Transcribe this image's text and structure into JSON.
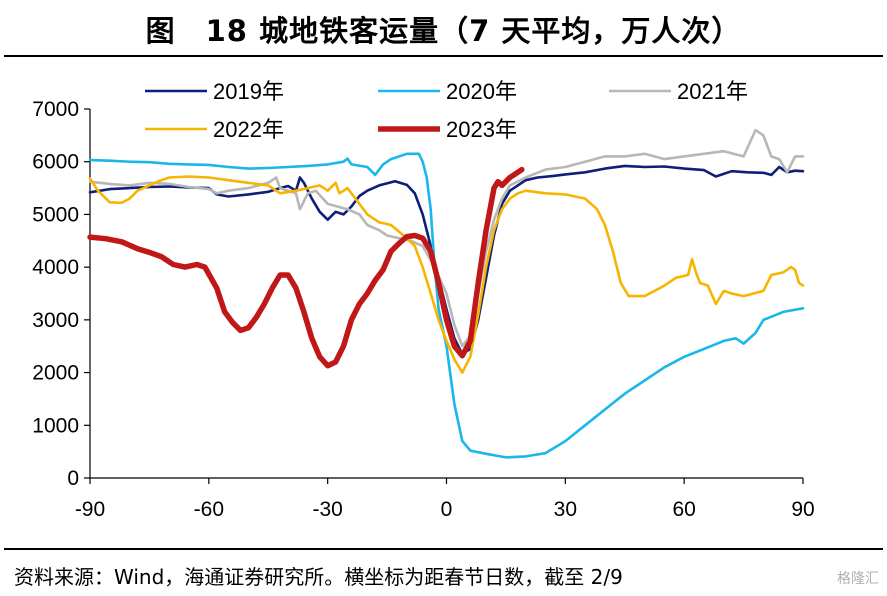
{
  "title": "图　18 城地铁客运量（7 天平均，万人次）",
  "source": "资料来源：Wind，海通证券研究所。横坐标为距春节日数，截至 2/9",
  "watermark": "格隆汇",
  "chart_data": {
    "type": "line",
    "xlim": [
      -90,
      90
    ],
    "ylim": [
      0,
      7000
    ],
    "xticks": [
      "-90",
      "-60",
      "-30",
      "0",
      "30",
      "60",
      "90"
    ],
    "yticks": [
      "0",
      "1000",
      "2000",
      "3000",
      "4000",
      "5000",
      "6000",
      "7000"
    ],
    "grid": false,
    "legend_placement": "top",
    "series": [
      {
        "name": "2019年",
        "color": "#0d1f7a",
        "width": 2.6,
        "points": [
          [
            -90,
            5420
          ],
          [
            -85,
            5480
          ],
          [
            -80,
            5500
          ],
          [
            -75,
            5520
          ],
          [
            -70,
            5530
          ],
          [
            -65,
            5510
          ],
          [
            -60,
            5500
          ],
          [
            -58,
            5380
          ],
          [
            -55,
            5340
          ],
          [
            -50,
            5380
          ],
          [
            -45,
            5430
          ],
          [
            -42,
            5500
          ],
          [
            -40,
            5540
          ],
          [
            -38,
            5450
          ],
          [
            -37,
            5700
          ],
          [
            -36,
            5600
          ],
          [
            -34,
            5300
          ],
          [
            -32,
            5050
          ],
          [
            -30,
            4900
          ],
          [
            -28,
            5050
          ],
          [
            -26,
            5000
          ],
          [
            -24,
            5150
          ],
          [
            -22,
            5350
          ],
          [
            -20,
            5450
          ],
          [
            -17,
            5550
          ],
          [
            -13,
            5630
          ],
          [
            -10,
            5560
          ],
          [
            -8,
            5400
          ],
          [
            -6,
            5000
          ],
          [
            -4,
            4400
          ],
          [
            -2,
            3800
          ],
          [
            0,
            3200
          ],
          [
            2,
            2650
          ],
          [
            4,
            2350
          ],
          [
            6,
            2450
          ],
          [
            8,
            3000
          ],
          [
            10,
            3800
          ],
          [
            12,
            4600
          ],
          [
            14,
            5200
          ],
          [
            16,
            5450
          ],
          [
            18,
            5550
          ],
          [
            20,
            5650
          ],
          [
            23,
            5700
          ],
          [
            27,
            5730
          ],
          [
            30,
            5760
          ],
          [
            35,
            5800
          ],
          [
            40,
            5870
          ],
          [
            45,
            5920
          ],
          [
            50,
            5900
          ],
          [
            55,
            5910
          ],
          [
            60,
            5870
          ],
          [
            65,
            5840
          ],
          [
            68,
            5720
          ],
          [
            72,
            5820
          ],
          [
            76,
            5800
          ],
          [
            80,
            5790
          ],
          [
            82,
            5750
          ],
          [
            84,
            5900
          ],
          [
            86,
            5800
          ],
          [
            88,
            5830
          ],
          [
            90,
            5820
          ]
        ]
      },
      {
        "name": "2020年",
        "color": "#1ab7ea",
        "width": 2.6,
        "points": [
          [
            -90,
            6030
          ],
          [
            -85,
            6020
          ],
          [
            -80,
            6000
          ],
          [
            -75,
            5990
          ],
          [
            -70,
            5960
          ],
          [
            -65,
            5950
          ],
          [
            -60,
            5940
          ],
          [
            -55,
            5900
          ],
          [
            -50,
            5870
          ],
          [
            -45,
            5880
          ],
          [
            -40,
            5900
          ],
          [
            -35,
            5920
          ],
          [
            -30,
            5950
          ],
          [
            -26,
            6000
          ],
          [
            -25,
            6060
          ],
          [
            -24,
            5950
          ],
          [
            -20,
            5900
          ],
          [
            -18,
            5750
          ],
          [
            -16,
            5950
          ],
          [
            -14,
            6050
          ],
          [
            -10,
            6150
          ],
          [
            -7,
            6150
          ],
          [
            -6,
            6000
          ],
          [
            -5,
            5700
          ],
          [
            -4,
            5100
          ],
          [
            -3,
            4000
          ],
          [
            -2,
            3200
          ],
          [
            0,
            2500
          ],
          [
            2,
            1400
          ],
          [
            4,
            700
          ],
          [
            6,
            520
          ],
          [
            10,
            460
          ],
          [
            15,
            390
          ],
          [
            20,
            410
          ],
          [
            25,
            470
          ],
          [
            30,
            700
          ],
          [
            35,
            1000
          ],
          [
            40,
            1300
          ],
          [
            45,
            1600
          ],
          [
            50,
            1850
          ],
          [
            55,
            2100
          ],
          [
            60,
            2300
          ],
          [
            65,
            2450
          ],
          [
            70,
            2600
          ],
          [
            73,
            2650
          ],
          [
            75,
            2550
          ],
          [
            78,
            2750
          ],
          [
            80,
            3000
          ],
          [
            85,
            3150
          ],
          [
            90,
            3220
          ]
        ]
      },
      {
        "name": "2021年",
        "color": "#b7b7b7",
        "width": 2.6,
        "points": [
          [
            -90,
            5620
          ],
          [
            -85,
            5580
          ],
          [
            -80,
            5550
          ],
          [
            -75,
            5600
          ],
          [
            -70,
            5580
          ],
          [
            -65,
            5520
          ],
          [
            -60,
            5480
          ],
          [
            -58,
            5400
          ],
          [
            -55,
            5450
          ],
          [
            -50,
            5500
          ],
          [
            -45,
            5600
          ],
          [
            -43,
            5700
          ],
          [
            -42,
            5500
          ],
          [
            -38,
            5400
          ],
          [
            -37,
            5100
          ],
          [
            -35,
            5400
          ],
          [
            -33,
            5450
          ],
          [
            -30,
            5200
          ],
          [
            -25,
            5100
          ],
          [
            -22,
            5000
          ],
          [
            -20,
            4800
          ],
          [
            -17,
            4700
          ],
          [
            -15,
            4600
          ],
          [
            -12,
            4550
          ],
          [
            -9,
            4500
          ],
          [
            -6,
            4400
          ],
          [
            -3,
            4000
          ],
          [
            0,
            3500
          ],
          [
            2,
            2900
          ],
          [
            4,
            2500
          ],
          [
            6,
            2700
          ],
          [
            8,
            3500
          ],
          [
            10,
            4300
          ],
          [
            12,
            4900
          ],
          [
            14,
            5300
          ],
          [
            16,
            5550
          ],
          [
            20,
            5700
          ],
          [
            25,
            5850
          ],
          [
            30,
            5900
          ],
          [
            35,
            6000
          ],
          [
            40,
            6100
          ],
          [
            45,
            6100
          ],
          [
            50,
            6150
          ],
          [
            55,
            6050
          ],
          [
            60,
            6100
          ],
          [
            65,
            6150
          ],
          [
            70,
            6200
          ],
          [
            75,
            6100
          ],
          [
            78,
            6600
          ],
          [
            80,
            6500
          ],
          [
            82,
            6100
          ],
          [
            84,
            6050
          ],
          [
            86,
            5800
          ],
          [
            88,
            6100
          ],
          [
            90,
            6100
          ]
        ]
      },
      {
        "name": "2022年",
        "color": "#f7b400",
        "width": 2.6,
        "points": [
          [
            -90,
            5680
          ],
          [
            -88,
            5450
          ],
          [
            -85,
            5230
          ],
          [
            -82,
            5220
          ],
          [
            -80,
            5300
          ],
          [
            -78,
            5450
          ],
          [
            -75,
            5550
          ],
          [
            -72,
            5650
          ],
          [
            -70,
            5700
          ],
          [
            -65,
            5720
          ],
          [
            -60,
            5700
          ],
          [
            -55,
            5650
          ],
          [
            -50,
            5600
          ],
          [
            -45,
            5550
          ],
          [
            -42,
            5400
          ],
          [
            -38,
            5450
          ],
          [
            -35,
            5500
          ],
          [
            -32,
            5550
          ],
          [
            -30,
            5450
          ],
          [
            -28,
            5600
          ],
          [
            -27,
            5400
          ],
          [
            -25,
            5500
          ],
          [
            -22,
            5200
          ],
          [
            -20,
            5000
          ],
          [
            -17,
            4850
          ],
          [
            -14,
            4800
          ],
          [
            -10,
            4550
          ],
          [
            -8,
            4400
          ],
          [
            -6,
            4000
          ],
          [
            -4,
            3500
          ],
          [
            -2,
            3000
          ],
          [
            0,
            2600
          ],
          [
            2,
            2250
          ],
          [
            4,
            2000
          ],
          [
            6,
            2300
          ],
          [
            8,
            3100
          ],
          [
            10,
            4000
          ],
          [
            12,
            4700
          ],
          [
            14,
            5100
          ],
          [
            16,
            5300
          ],
          [
            18,
            5400
          ],
          [
            20,
            5450
          ],
          [
            25,
            5400
          ],
          [
            30,
            5380
          ],
          [
            35,
            5300
          ],
          [
            38,
            5100
          ],
          [
            40,
            4800
          ],
          [
            42,
            4300
          ],
          [
            44,
            3700
          ],
          [
            46,
            3450
          ],
          [
            50,
            3450
          ],
          [
            55,
            3650
          ],
          [
            58,
            3800
          ],
          [
            61,
            3850
          ],
          [
            62,
            4150
          ],
          [
            63,
            3900
          ],
          [
            64,
            3700
          ],
          [
            66,
            3650
          ],
          [
            68,
            3300
          ],
          [
            70,
            3550
          ],
          [
            72,
            3500
          ],
          [
            75,
            3450
          ],
          [
            80,
            3550
          ],
          [
            82,
            3850
          ],
          [
            85,
            3900
          ],
          [
            87,
            4000
          ],
          [
            88,
            3950
          ],
          [
            89,
            3700
          ],
          [
            90,
            3650
          ]
        ]
      },
      {
        "name": "2023年",
        "color": "#c01818",
        "width": 5.5,
        "points": [
          [
            -90,
            4570
          ],
          [
            -86,
            4540
          ],
          [
            -82,
            4480
          ],
          [
            -78,
            4350
          ],
          [
            -75,
            4280
          ],
          [
            -72,
            4200
          ],
          [
            -69,
            4050
          ],
          [
            -66,
            4000
          ],
          [
            -63,
            4050
          ],
          [
            -61,
            4000
          ],
          [
            -58,
            3600
          ],
          [
            -56,
            3150
          ],
          [
            -54,
            2950
          ],
          [
            -52,
            2800
          ],
          [
            -50,
            2850
          ],
          [
            -48,
            3050
          ],
          [
            -46,
            3300
          ],
          [
            -44,
            3600
          ],
          [
            -42,
            3850
          ],
          [
            -40,
            3850
          ],
          [
            -38,
            3600
          ],
          [
            -36,
            3150
          ],
          [
            -34,
            2650
          ],
          [
            -32,
            2300
          ],
          [
            -30,
            2130
          ],
          [
            -28,
            2200
          ],
          [
            -26,
            2500
          ],
          [
            -24,
            3000
          ],
          [
            -22,
            3300
          ],
          [
            -20,
            3500
          ],
          [
            -18,
            3750
          ],
          [
            -16,
            3950
          ],
          [
            -14,
            4300
          ],
          [
            -12,
            4450
          ],
          [
            -10,
            4580
          ],
          [
            -8,
            4600
          ],
          [
            -6,
            4550
          ],
          [
            -4,
            4300
          ],
          [
            -2,
            3700
          ],
          [
            0,
            3000
          ],
          [
            2,
            2500
          ],
          [
            4,
            2320
          ],
          [
            6,
            2600
          ],
          [
            8,
            3700
          ],
          [
            10,
            4700
          ],
          [
            12,
            5500
          ],
          [
            13,
            5620
          ],
          [
            14,
            5550
          ],
          [
            16,
            5700
          ],
          [
            18,
            5800
          ],
          [
            19,
            5850
          ]
        ]
      }
    ]
  }
}
